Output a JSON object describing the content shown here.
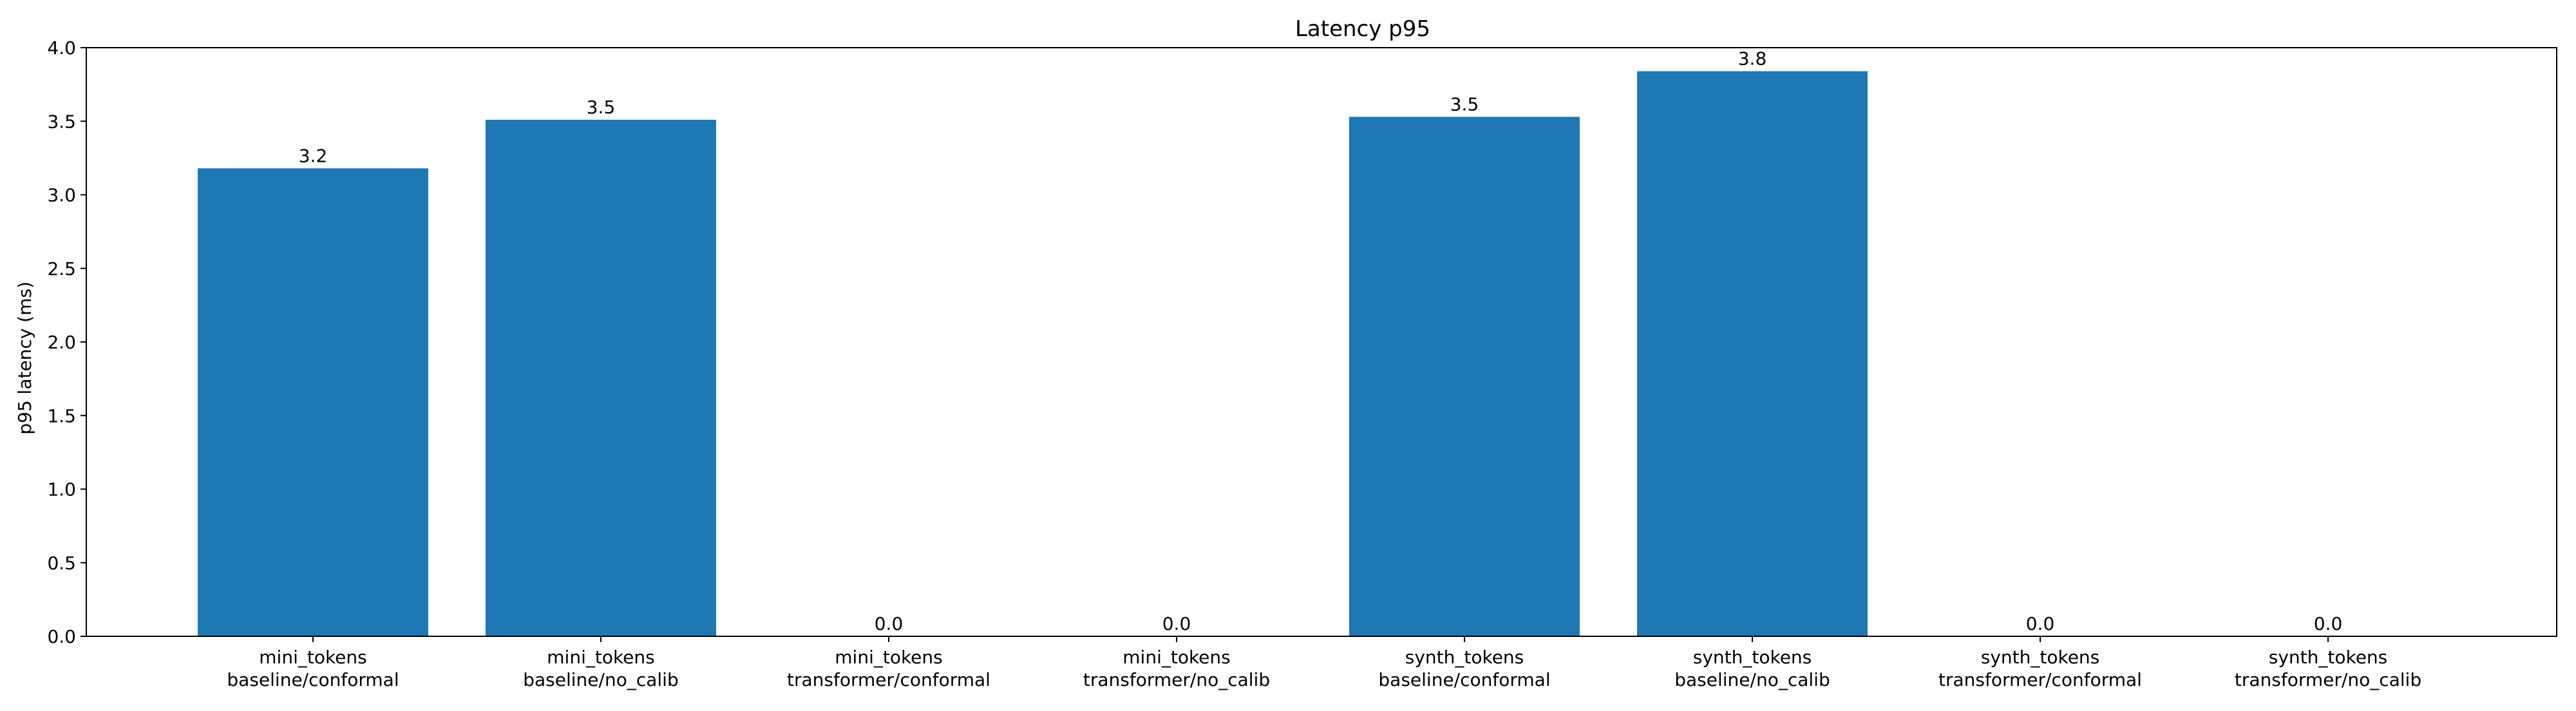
{
  "chart_data": {
    "type": "bar",
    "title": "Latency p95",
    "xlabel": "",
    "ylabel": "p95 latency (ms)",
    "ylim": [
      0,
      4.0
    ],
    "yticks": [
      "0.0",
      "0.5",
      "1.0",
      "1.5",
      "2.0",
      "2.5",
      "3.0",
      "3.5",
      "4.0"
    ],
    "categories": [
      [
        "mini_tokens",
        "baseline/conformal"
      ],
      [
        "mini_tokens",
        "baseline/no_calib"
      ],
      [
        "mini_tokens",
        "transformer/conformal"
      ],
      [
        "mini_tokens",
        "transformer/no_calib"
      ],
      [
        "synth_tokens",
        "baseline/conformal"
      ],
      [
        "synth_tokens",
        "baseline/no_calib"
      ],
      [
        "synth_tokens",
        "transformer/conformal"
      ],
      [
        "synth_tokens",
        "transformer/no_calib"
      ]
    ],
    "values": [
      3.18,
      3.51,
      0.0,
      0.0,
      3.53,
      3.84,
      0.0,
      0.0
    ],
    "value_labels": [
      "3.2",
      "3.5",
      "0.0",
      "0.0",
      "3.5",
      "3.8",
      "0.0",
      "0.0"
    ],
    "bar_color": "#1f77b4",
    "grid": false,
    "legend": null
  }
}
